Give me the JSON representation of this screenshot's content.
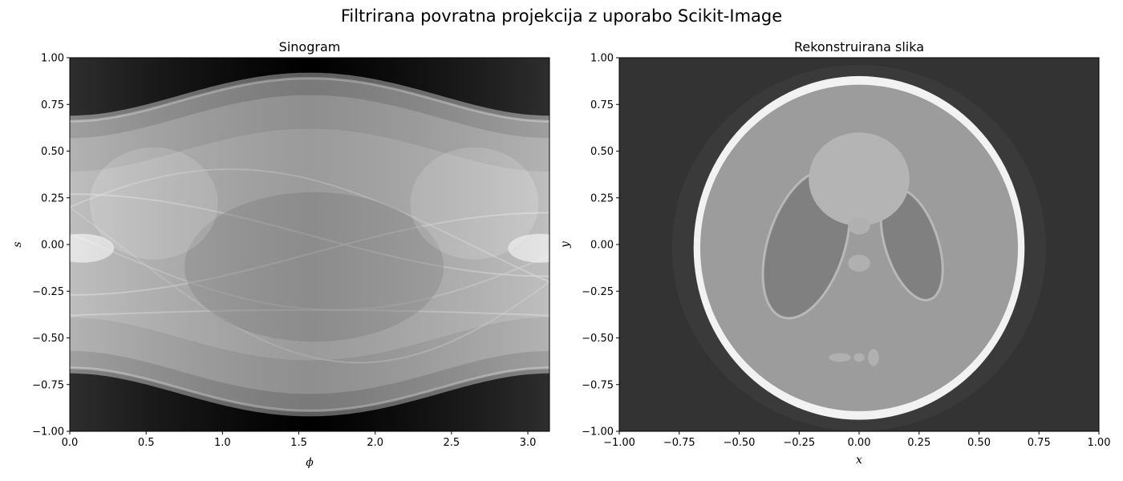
{
  "suptitle": "Filtrirana povratna projekcija z uporabo Scikit-Image",
  "chart_data": [
    {
      "type": "heatmap",
      "title": "Sinogram",
      "xlabel": "ϕ",
      "ylabel": "s",
      "xlim": [
        0,
        3.14159
      ],
      "ylim": [
        -1,
        1
      ],
      "colormap": "gray",
      "grid": false,
      "x_ticks": [
        0,
        0.5,
        1,
        1.5,
        2,
        2.5,
        3
      ],
      "x_tick_labels": [
        "0.0",
        "0.5",
        "1.0",
        "1.5",
        "2.0",
        "2.5",
        "3.0"
      ],
      "y_ticks": [
        1,
        0.75,
        0.5,
        0.25,
        0,
        -0.25,
        -0.5,
        -0.75,
        -1
      ],
      "y_tick_labels": [
        "1.00",
        "0.75",
        "0.50",
        "0.25",
        "0.00",
        "−0.25",
        "−0.50",
        "−0.75",
        "−1.00"
      ],
      "support": {
        "half_width_at_phi0": 0.69,
        "half_width_at_phi_mid": 0.92
      },
      "background_color": "#000000"
    },
    {
      "type": "heatmap",
      "title": "Rekonstruirana slika",
      "xlabel": "x",
      "ylabel": "y",
      "xlim": [
        -1,
        1
      ],
      "ylim": [
        -1,
        1
      ],
      "colormap": "gray",
      "grid": false,
      "x_ticks": [
        -1,
        -0.75,
        -0.5,
        -0.25,
        0,
        0.25,
        0.5,
        0.75,
        1
      ],
      "x_tick_labels": [
        "−1.00",
        "−0.75",
        "−0.50",
        "−0.25",
        "0.00",
        "0.25",
        "0.50",
        "0.75",
        "1.00"
      ],
      "y_ticks": [
        1,
        0.75,
        0.5,
        0.25,
        0,
        -0.25,
        -0.5,
        -0.75,
        -1
      ],
      "y_tick_labels": [
        "1.00",
        "0.75",
        "0.50",
        "0.25",
        "0.00",
        "−0.25",
        "−0.50",
        "−0.75",
        "−1.00"
      ],
      "background_color": "#333333",
      "ellipses": [
        {
          "name": "skull",
          "cx": 0,
          "cy": -0.0184,
          "a": 0.69,
          "b": 0.92,
          "rot": 0,
          "color": "#f2f2f2"
        },
        {
          "name": "brain",
          "cx": 0,
          "cy": -0.0184,
          "a": 0.6624,
          "b": 0.874,
          "rot": 0,
          "color": "#9c9c9c"
        },
        {
          "name": "right-ventricle",
          "cx": 0.22,
          "cy": 0,
          "a": 0.11,
          "b": 0.31,
          "rot": -18,
          "color": "#808080"
        },
        {
          "name": "left-ventricle",
          "cx": -0.22,
          "cy": 0,
          "a": 0.16,
          "b": 0.41,
          "rot": 18,
          "color": "#808080"
        },
        {
          "name": "top-disc",
          "cx": 0,
          "cy": 0.35,
          "a": 0.21,
          "b": 0.25,
          "rot": 0,
          "color": "#b4b4b4"
        },
        {
          "name": "small-spot-1",
          "cx": 0,
          "cy": 0.1,
          "a": 0.046,
          "b": 0.046,
          "rot": 0,
          "color": "#b0b0b0"
        },
        {
          "name": "small-spot-2",
          "cx": 0,
          "cy": -0.1,
          "a": 0.046,
          "b": 0.046,
          "rot": 0,
          "color": "#b0b0b0"
        },
        {
          "name": "bottom-spot-1",
          "cx": -0.08,
          "cy": -0.605,
          "a": 0.046,
          "b": 0.023,
          "rot": 0,
          "color": "#b0b0b0"
        },
        {
          "name": "bottom-spot-2",
          "cx": 0,
          "cy": -0.605,
          "a": 0.023,
          "b": 0.023,
          "rot": 0,
          "color": "#b0b0b0"
        },
        {
          "name": "bottom-spot-3",
          "cx": 0.06,
          "cy": -0.605,
          "a": 0.023,
          "b": 0.046,
          "rot": 0,
          "color": "#b0b0b0"
        }
      ]
    }
  ]
}
